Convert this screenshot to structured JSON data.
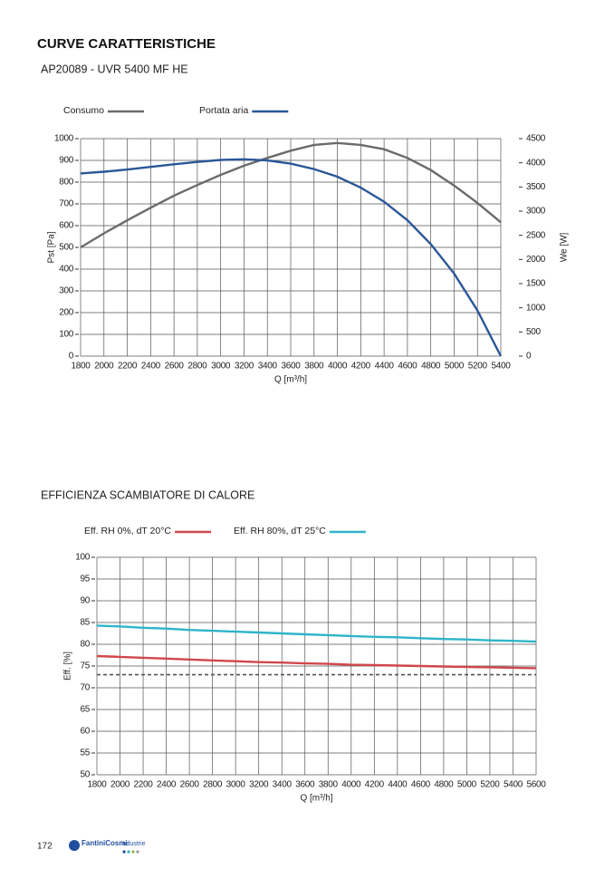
{
  "header": {
    "title": "CURVE CARATTERISTICHE"
  },
  "chart_data": [
    {
      "type": "line",
      "title": "AP20089 - UVR 5400 MF HE",
      "x_label": "Q [m³/h]",
      "y_label": "Pst [Pa]",
      "y2_label": "We [W]",
      "x": [
        1800,
        2000,
        2200,
        2400,
        2600,
        2800,
        3000,
        3200,
        3400,
        3600,
        3800,
        4000,
        4200,
        4400,
        4600,
        4800,
        5000,
        5200,
        5400
      ],
      "xlim": [
        1800,
        5400
      ],
      "xticks": [
        1800,
        2000,
        2200,
        2400,
        2600,
        2800,
        3000,
        3200,
        3400,
        3600,
        3800,
        4000,
        4200,
        4400,
        4600,
        4800,
        5000,
        5200,
        5400
      ],
      "ylim": [
        0,
        1000
      ],
      "yticks": [
        0,
        100,
        200,
        300,
        400,
        500,
        600,
        700,
        800,
        900,
        1000
      ],
      "y2lim": [
        0,
        4500
      ],
      "y2ticks": [
        0,
        500,
        1000,
        1500,
        2000,
        2500,
        3000,
        3500,
        4000,
        4500
      ],
      "grid": true,
      "legend": "top-left",
      "series": [
        {
          "name": "Consumo",
          "color": "#6b6b6b",
          "axis": "y2",
          "values": [
            2250,
            2540,
            2810,
            3070,
            3320,
            3540,
            3750,
            3940,
            4100,
            4250,
            4370,
            4410,
            4370,
            4280,
            4100,
            3850,
            3530,
            3170,
            2770
          ]
        },
        {
          "name": "Portata aria",
          "color": "#2b5797",
          "values": [
            840,
            848,
            858,
            870,
            882,
            893,
            902,
            905,
            900,
            885,
            860,
            825,
            775,
            710,
            625,
            515,
            380,
            210,
            0
          ]
        }
      ]
    },
    {
      "type": "line",
      "title": "EFFICIENZA SCAMBIATORE DI CALORE",
      "x_label": "Q [m³/h]",
      "y_label": "Eff. [%]",
      "x": [
        1800,
        2000,
        2200,
        2400,
        2600,
        2800,
        3000,
        3200,
        3400,
        3600,
        3800,
        4000,
        4200,
        4400,
        4600,
        4800,
        5000,
        5200,
        5400,
        5600
      ],
      "xlim": [
        1800,
        5600
      ],
      "xticks": [
        1800,
        2000,
        2200,
        2400,
        2600,
        2800,
        3000,
        3200,
        3400,
        3600,
        3800,
        4000,
        4200,
        4400,
        4600,
        4800,
        5000,
        5200,
        5400,
        5600
      ],
      "ylim": [
        50,
        100
      ],
      "yticks": [
        50,
        55,
        60,
        65,
        70,
        75,
        80,
        85,
        90,
        95,
        100
      ],
      "grid": true,
      "legend": "top-left",
      "threshold": 73,
      "series": [
        {
          "name": "Eff. RH 0%, dT 20°C",
          "color": "#d0474c",
          "values": [
            77.3,
            77.1,
            76.9,
            76.7,
            76.5,
            76.3,
            76.1,
            75.9,
            75.8,
            75.6,
            75.5,
            75.3,
            75.2,
            75.1,
            75.0,
            74.9,
            74.8,
            74.7,
            74.6,
            74.5
          ]
        },
        {
          "name": "Eff. RH 80%, dT 25°C",
          "color": "#2eb5c9",
          "values": [
            84.3,
            84.1,
            83.8,
            83.6,
            83.3,
            83.1,
            82.9,
            82.7,
            82.5,
            82.3,
            82.1,
            81.9,
            81.7,
            81.6,
            81.4,
            81.2,
            81.1,
            80.9,
            80.8,
            80.6
          ]
        }
      ]
    }
  ],
  "footer": {
    "page_number": "172",
    "logo": "FantiniCosmi",
    "logo_sub": "industrie"
  }
}
